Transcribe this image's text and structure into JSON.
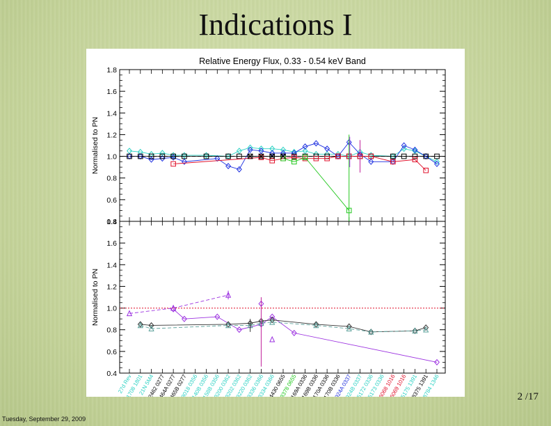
{
  "slide": {
    "title": "Indications I",
    "page_number": "2",
    "page_total": "/17",
    "footer_date": "Tuesday, September 29, 2009"
  },
  "chart_data": [
    {
      "type": "line",
      "title": "Relative Energy Flux, 0.33 - 0.54 keV Band",
      "xlabel": "",
      "ylabel": "Normalised to PN",
      "ylim": [
        0.4,
        1.8
      ],
      "yticks": [
        0.4,
        0.6,
        0.8,
        1.0,
        1.2,
        1.4,
        1.6,
        1.8
      ],
      "categories": [
        "27d Rev",
        "1708 1801",
        "21N 5M4",
        "2462 0277",
        "2464A 0277",
        "2465B 0277",
        "3018 0356",
        "3140B 0356",
        "3158B 0356",
        "3200 0362",
        "3202 0362",
        "3220 0362",
        "3336 0366",
        "3334 0366",
        "4430 0655",
        "3378 0655",
        "5169A 0336",
        "5169B 0336",
        "5170A 0336",
        "5170B 0336",
        "4924A 0337",
        "4924B 0337",
        "5172 0336",
        "5173 0336",
        "6068 1016",
        "6069 1016",
        "5175 1391",
        "8375 1391",
        "8784 1346"
      ],
      "category_colors": [
        "#2bd1c3",
        "#2bd1c3",
        "#2bd1c3",
        "#000000",
        "#000000",
        "#000000",
        "#2bd1c3",
        "#2bd1c3",
        "#2bd1c3",
        "#2bd1c3",
        "#2bd1c3",
        "#2bd1c3",
        "#2bd1c3",
        "#2bd1c3",
        "#000000",
        "#22c81e",
        "#000000",
        "#000000",
        "#000000",
        "#000000",
        "#2233dd",
        "#2bd1c3",
        "#2bd1c3",
        "#2bd1c3",
        "#e0102a",
        "#e0102a",
        "#2bd1c3",
        "#000000",
        "#2bd1c3"
      ],
      "reference_line": 1.0,
      "series": [
        {
          "color": "#2bd1c3",
          "marker": "diamond",
          "x": [
            0,
            1,
            2,
            3,
            4,
            5,
            7,
            9,
            10,
            11,
            12,
            13,
            14,
            15,
            16,
            17,
            18,
            19,
            20,
            21,
            22,
            24,
            25,
            26,
            27,
            28
          ],
          "y": [
            1.05,
            1.04,
            1.02,
            1.03,
            1.01,
            1.01,
            1.01,
            1.0,
            1.05,
            1.08,
            1.07,
            1.07,
            1.06,
            1.04,
            1.05,
            1.02,
            1.02,
            1.02,
            1.0,
            1.04,
            1.01,
            1.0,
            1.07,
            1.05,
            1.0,
            0.95
          ]
        },
        {
          "color": "#1d2fe0",
          "marker": "diamond",
          "x": [
            0,
            1,
            2,
            3,
            4,
            5,
            8,
            9,
            10,
            11,
            12,
            13,
            14,
            15,
            16,
            17,
            18,
            19,
            20,
            21,
            22,
            24,
            25,
            26,
            27,
            28
          ],
          "y": [
            1.0,
            1.0,
            0.97,
            0.98,
            0.99,
            0.95,
            0.98,
            0.91,
            0.88,
            1.06,
            1.05,
            1.03,
            1.03,
            1.03,
            1.09,
            1.12,
            1.07,
            1.0,
            1.13,
            1.02,
            0.95,
            0.95,
            1.1,
            1.06,
            1.0,
            0.93
          ]
        },
        {
          "color": "#000000",
          "marker": "square",
          "x": [
            0,
            1,
            2,
            3,
            4,
            5,
            7,
            9,
            10,
            11,
            12,
            13,
            14,
            15,
            16,
            17,
            18,
            19,
            20,
            21,
            22,
            24,
            25,
            26,
            27,
            28
          ],
          "y": [
            1.0,
            1.0,
            1.0,
            1.0,
            1.0,
            1.0,
            1.0,
            1.0,
            1.0,
            1.0,
            1.0,
            1.0,
            1.0,
            1.0,
            1.0,
            1.0,
            1.0,
            1.0,
            1.0,
            1.0,
            1.0,
            1.0,
            1.0,
            1.0,
            1.0,
            1.0
          ]
        },
        {
          "color": "#e0102a",
          "marker": "square",
          "x": [
            4,
            12,
            13,
            14,
            15,
            16,
            17,
            18,
            19,
            20,
            21,
            22,
            24,
            26,
            27
          ],
          "y": [
            0.93,
            0.99,
            0.96,
            0.98,
            0.99,
            0.98,
            0.98,
            0.98,
            1.0,
            1.0,
            1.0,
            1.0,
            0.95,
            0.97,
            0.87
          ]
        },
        {
          "color": "#22c81e",
          "marker": "square",
          "x": [
            14,
            15,
            16,
            20
          ],
          "y": [
            0.98,
            0.95,
            0.99,
            0.5
          ]
        },
        {
          "color": "#000000",
          "marker": "cross",
          "x": [
            11,
            12,
            13,
            14
          ],
          "y": [
            1.0,
            1.0,
            1.0,
            1.0
          ]
        }
      ]
    },
    {
      "type": "line",
      "title": "",
      "xlabel": "",
      "ylabel": "Normalised to PN",
      "ylim": [
        0.4,
        1.8
      ],
      "yticks": [
        0.4,
        0.6,
        0.8,
        1.0,
        1.2,
        1.4,
        1.6,
        1.8
      ],
      "reference_line": 1.0,
      "series": [
        {
          "color": "#9b30e0",
          "marker": "triangle",
          "dash": true,
          "x": [
            0,
            4,
            9
          ],
          "y": [
            0.95,
            1.0,
            1.12
          ]
        },
        {
          "color": "#9b30e0",
          "marker": "diamond",
          "x": [
            4,
            5,
            8,
            10,
            12,
            13,
            15,
            28
          ],
          "y": [
            0.99,
            0.9,
            0.92,
            0.8,
            0.85,
            0.92,
            0.77,
            0.5
          ]
        },
        {
          "color": "#9b30e0",
          "marker": "triangle",
          "x": [
            13
          ],
          "y": [
            0.71
          ]
        },
        {
          "color": "#9b30e0",
          "marker": "diamond",
          "x": [
            12
          ],
          "y": [
            1.04
          ]
        },
        {
          "color": "#333333",
          "marker": "diamond",
          "x": [
            1,
            2,
            9,
            11,
            12,
            13,
            17,
            20,
            22,
            26,
            27
          ],
          "y": [
            0.85,
            0.84,
            0.85,
            0.86,
            0.88,
            0.89,
            0.85,
            0.83,
            0.78,
            0.79,
            0.82
          ]
        },
        {
          "color": "#5aa09a",
          "marker": "triangle",
          "dash": true,
          "x": [
            1,
            2,
            9,
            11,
            12,
            13,
            17,
            20,
            22,
            26,
            27
          ],
          "y": [
            0.84,
            0.81,
            0.84,
            0.84,
            0.86,
            0.87,
            0.84,
            0.81,
            0.78,
            0.79,
            0.8
          ]
        }
      ]
    }
  ]
}
